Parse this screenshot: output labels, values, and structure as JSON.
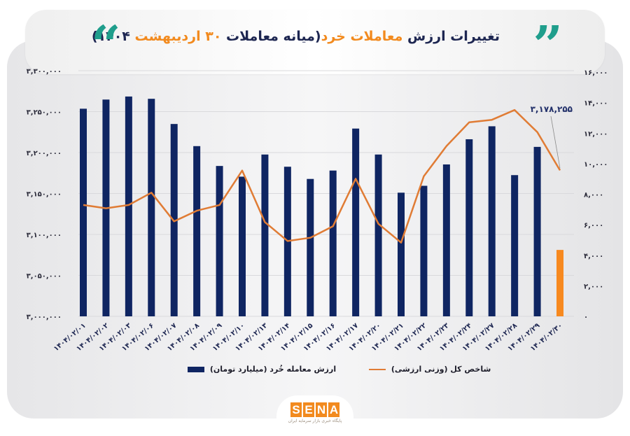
{
  "header": {
    "title_parts": [
      {
        "text": "تغییرات ارزش ",
        "color": "navy"
      },
      {
        "text": "معاملات خرد",
        "color": "orange"
      },
      {
        "text": "(میانه معاملات ",
        "color": "navy"
      },
      {
        "text": "۳۰ اردیبهشت",
        "color": "orange"
      },
      {
        "text": " ۱۴۰۴)",
        "color": "navy"
      }
    ],
    "open_quote_glyph": "“",
    "close_quote_glyph": "”",
    "quote_icon_color": "#1f9e8c"
  },
  "colors": {
    "bar": "#0f2562",
    "bar_highlight": "#f7891f",
    "line": "#e07c35",
    "gridline": "#d9d9dc",
    "title_navy": "#1d2651",
    "title_orange": "#f28a1e"
  },
  "legend": {
    "bar_label": "ارزش معامله خُرد (میلیارد تومان)",
    "line_label": "شاخص کل (وزنی ارزشی)"
  },
  "annotation": {
    "text": "۳,۱۷۸,۲۵۵",
    "target_index": 21
  },
  "logo": {
    "letters": [
      "S",
      "E",
      "N",
      "A"
    ],
    "subtitle": "پایگاه خبری بازار سرمایه ایران"
  },
  "chart_data": {
    "type": "bar+line",
    "title": "تغییرات ارزش معاملات خرد (میانه معاملات ۳۰ اردیبهشت ۱۴۰۴)",
    "xlabel": "",
    "categories": [
      "۱۴۰۴/۰۲/۰۱",
      "۱۴۰۴/۰۲/۰۲",
      "۱۴۰۴/۰۲/۰۳",
      "۱۴۰۴/۰۲/۰۶",
      "۱۴۰۴/۰۲/۰۷",
      "۱۴۰۴/۰۲/۰۸",
      "۱۴۰۴/۰۲/۰۹",
      "۱۴۰۴/۰۲/۱۰",
      "۱۴۰۴/۰۲/۱۳",
      "۱۴۰۴/۰۲/۱۴",
      "۱۴۰۴/۰۲/۱۵",
      "۱۴۰۴/۰۲/۱۶",
      "۱۴۰۴/۰۲/۱۷",
      "۱۴۰۴/۰۲/۲۰",
      "۱۴۰۴/۰۲/۲۱",
      "۱۴۰۴/۰۲/۲۲",
      "۱۴۰۴/۰۲/۲۳",
      "۱۴۰۴/۰۲/۲۴",
      "۱۴۰۴/۰۲/۲۷",
      "۱۴۰۴/۰۲/۲۸",
      "۱۴۰۴/۰۲/۲۹",
      "۱۴۰۴/۰۲/۳۰"
    ],
    "series": [
      {
        "name": "ارزش معامله خُرد (میلیارد تومان)",
        "type": "bar",
        "axis": "right",
        "values": [
          13600,
          14200,
          14400,
          14250,
          12600,
          11150,
          9850,
          9150,
          10600,
          9800,
          9000,
          9550,
          12300,
          10600,
          8100,
          8550,
          9950,
          11600,
          12450,
          9250,
          11100,
          4350
        ],
        "highlight_last": true
      },
      {
        "name": "شاخص کل (وزنی ارزشی)",
        "type": "line",
        "axis": "left",
        "values": [
          3136000,
          3132000,
          3136000,
          3151000,
          3116000,
          3129000,
          3136000,
          3178000,
          3115000,
          3092000,
          3096000,
          3110000,
          3168000,
          3113000,
          3090000,
          3171000,
          3208000,
          3237000,
          3240000,
          3252000,
          3225000,
          3178255
        ]
      }
    ],
    "left_axis": {
      "ylim": [
        3000000,
        3300000
      ],
      "ticks": [
        "۳,۰۰۰,۰۰۰",
        "۳,۰۵۰,۰۰۰",
        "۳,۱۰۰,۰۰۰",
        "۳,۱۵۰,۰۰۰",
        "۳,۲۰۰,۰۰۰",
        "۳,۲۵۰,۰۰۰",
        "۳,۳۰۰,۰۰۰"
      ],
      "tick_values": [
        3000000,
        3050000,
        3100000,
        3150000,
        3200000,
        3250000,
        3300000
      ]
    },
    "right_axis": {
      "ylim": [
        0,
        16000
      ],
      "ticks": [
        "۰",
        "۲,۰۰۰",
        "۴,۰۰۰",
        "۶,۰۰۰",
        "۸,۰۰۰",
        "۱۰,۰۰۰",
        "۱۲,۰۰۰",
        "۱۴,۰۰۰",
        "۱۶,۰۰۰"
      ],
      "tick_values": [
        0,
        2000,
        4000,
        6000,
        8000,
        10000,
        12000,
        14000,
        16000
      ]
    },
    "grid": true,
    "legend_position": "bottom"
  }
}
